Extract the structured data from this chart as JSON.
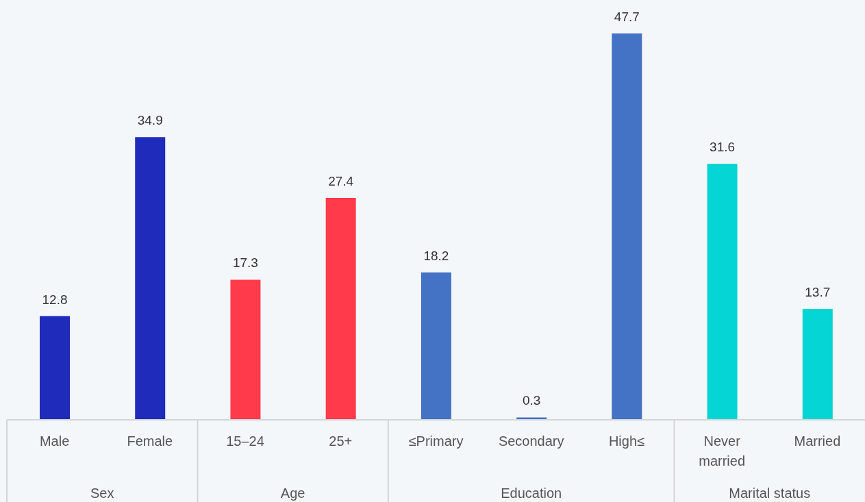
{
  "chart_data": {
    "type": "bar",
    "categories": [
      "Male",
      "Female",
      "15–24",
      "25+",
      "≤Primary",
      "Secondary",
      "High≤",
      "Never married",
      "Married"
    ],
    "series": [
      {
        "color": "#1e2bbb",
        "values": [
          12.8,
          34.9,
          null,
          null,
          null,
          null,
          null,
          null,
          null
        ]
      },
      {
        "color": "#ff3a4b",
        "values": [
          null,
          null,
          17.3,
          27.4,
          null,
          null,
          null,
          null,
          null
        ]
      },
      {
        "color": "#4472c4",
        "values": [
          null,
          null,
          null,
          null,
          18.2,
          0.3,
          47.7,
          null,
          null
        ]
      },
      {
        "color": "#05d5d4",
        "values": [
          null,
          null,
          null,
          null,
          null,
          null,
          null,
          31.6,
          13.7
        ]
      }
    ],
    "annotations": [
      "Sex",
      "Age",
      "Education",
      "Marital status"
    ],
    "stacked": true,
    "data_labels": true
  }
}
